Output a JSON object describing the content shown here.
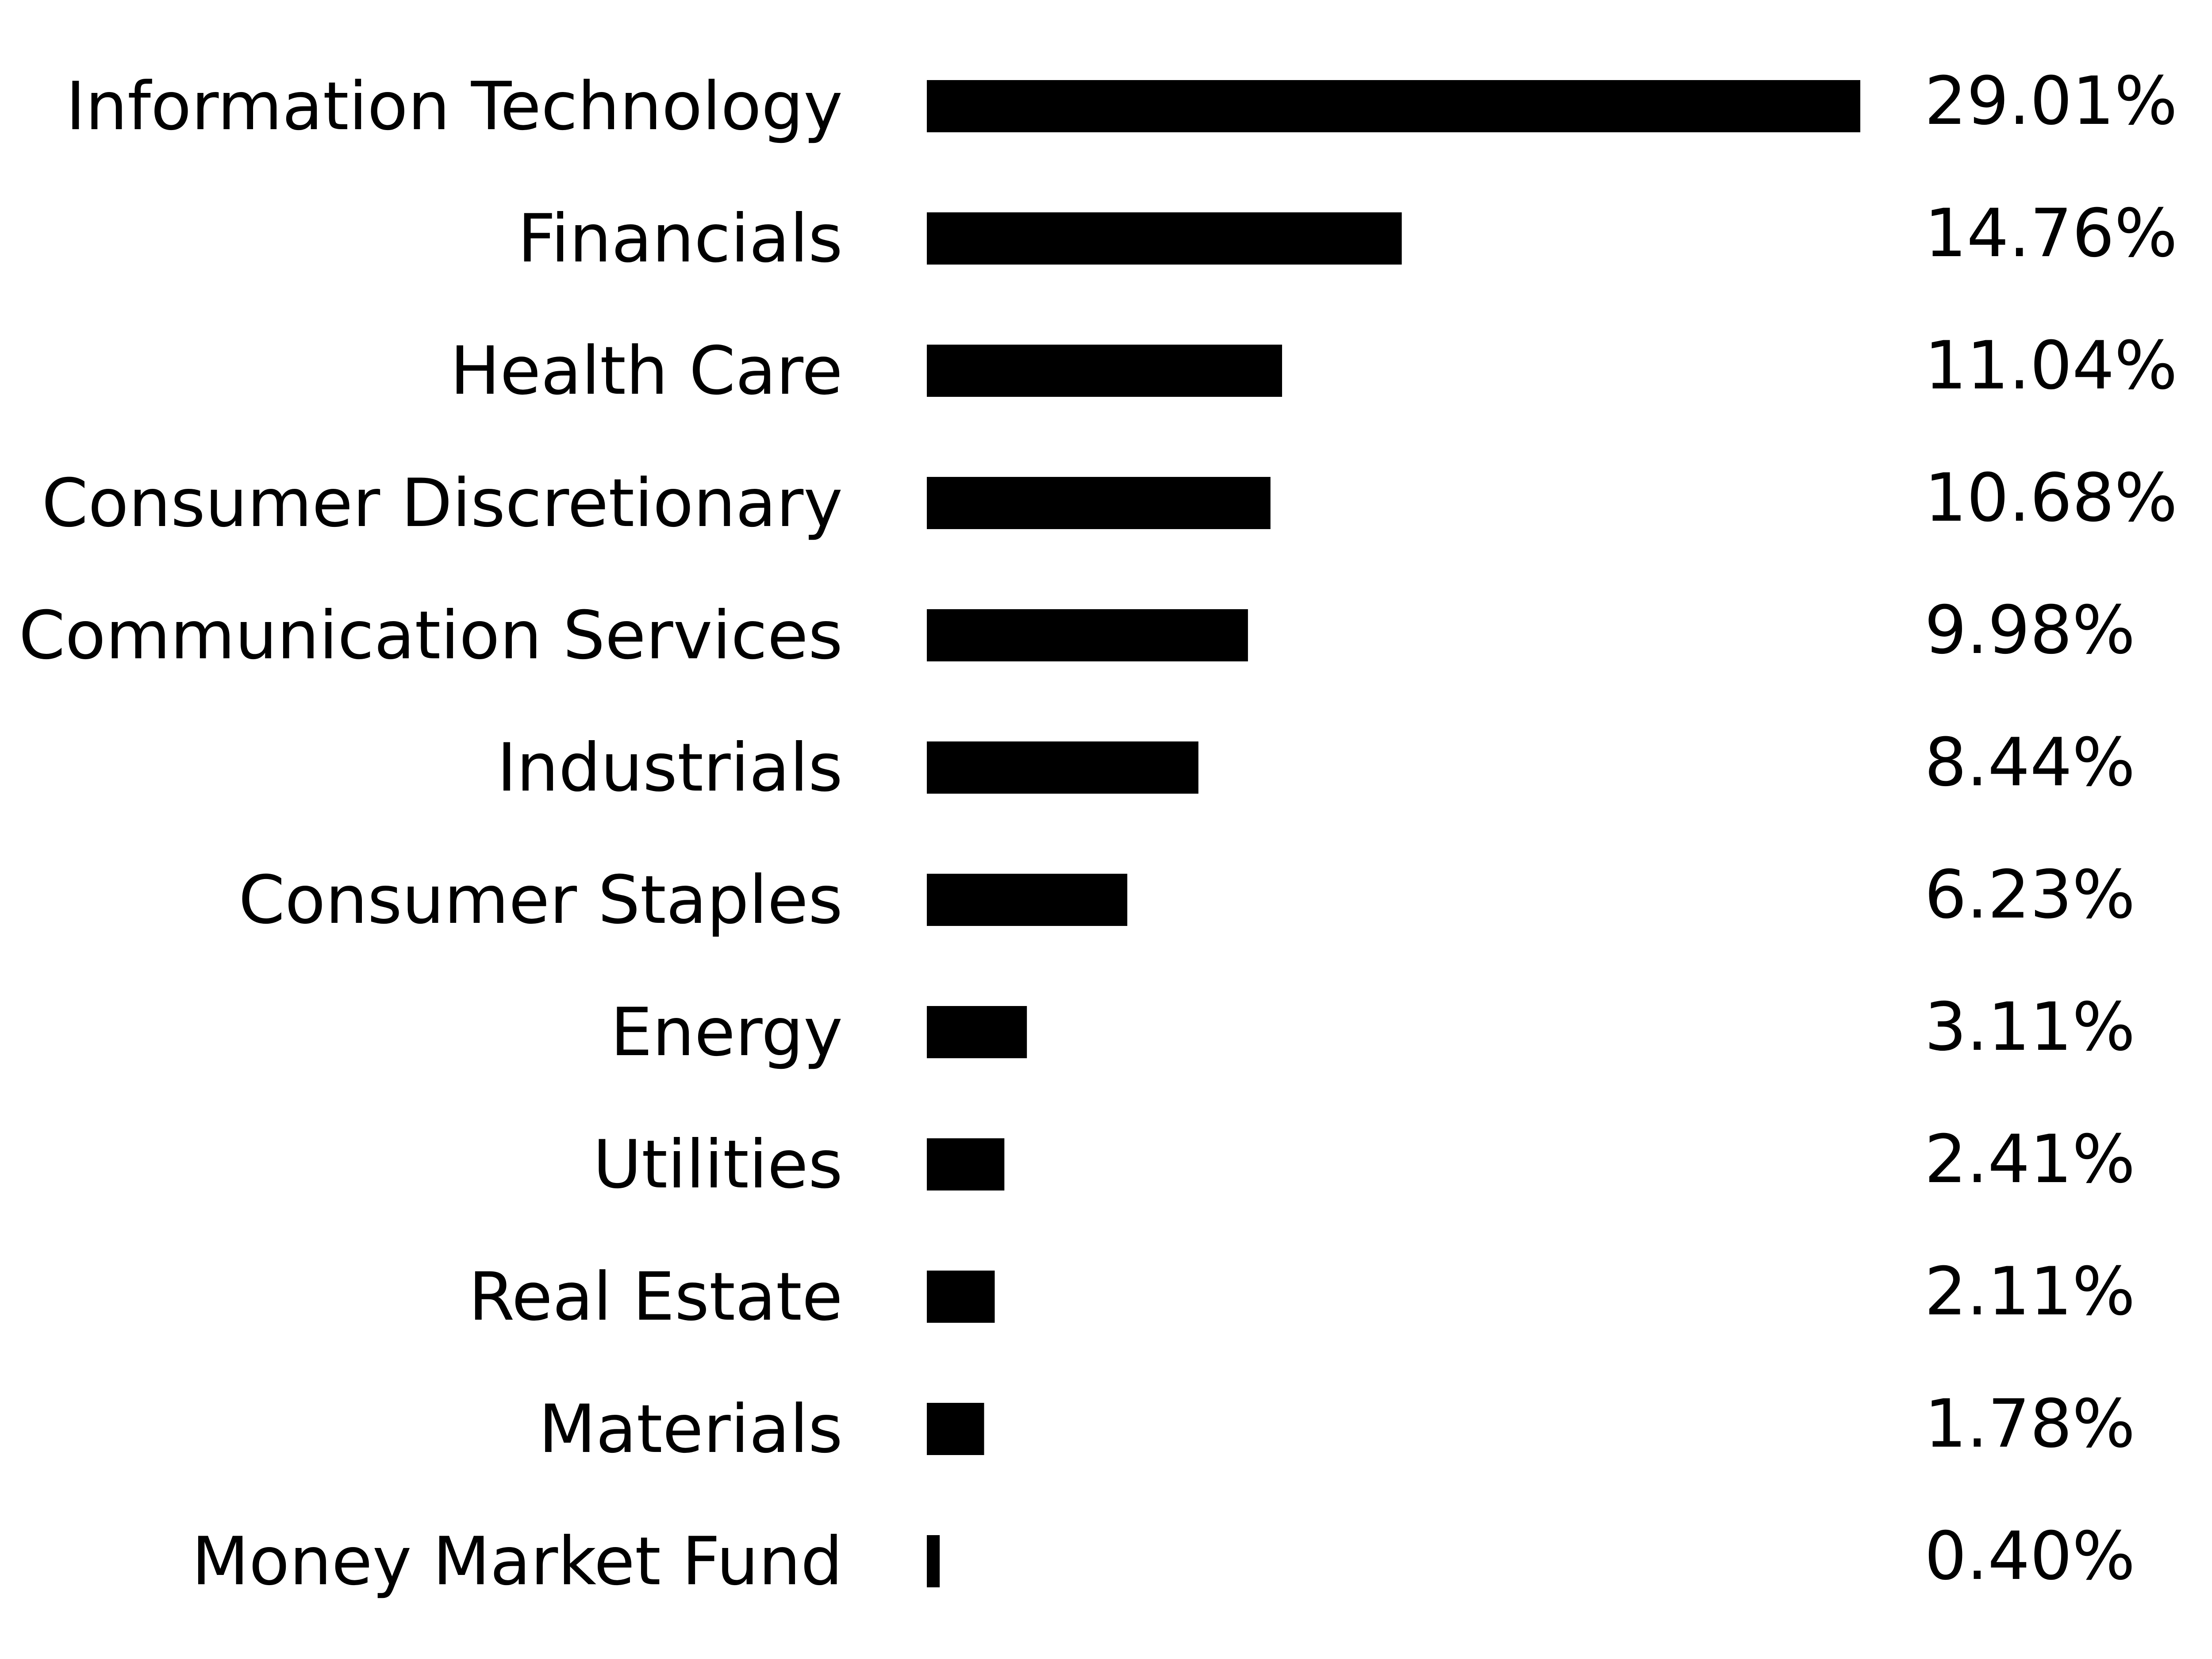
{
  "chart_data": {
    "type": "bar",
    "orientation": "horizontal",
    "categories": [
      "Information Technology",
      "Financials",
      "Health Care",
      "Consumer Discretionary",
      "Communication Services",
      "Industrials",
      "Consumer Staples",
      "Energy",
      "Utilities",
      "Real Estate",
      "Materials",
      "Money Market Fund"
    ],
    "values": [
      29.01,
      14.76,
      11.04,
      10.68,
      9.98,
      8.44,
      6.23,
      3.11,
      2.41,
      2.11,
      1.78,
      0.4
    ],
    "value_labels": [
      "29.01%",
      "14.76%",
      "11.04%",
      "10.68%",
      "9.98%",
      "8.44%",
      "6.23%",
      "3.11%",
      "2.41%",
      "2.11%",
      "1.78%",
      "0.40%"
    ],
    "title": "",
    "xlabel": "",
    "ylabel": "",
    "grid": false,
    "legend": "none",
    "bar_color": "#000000"
  }
}
